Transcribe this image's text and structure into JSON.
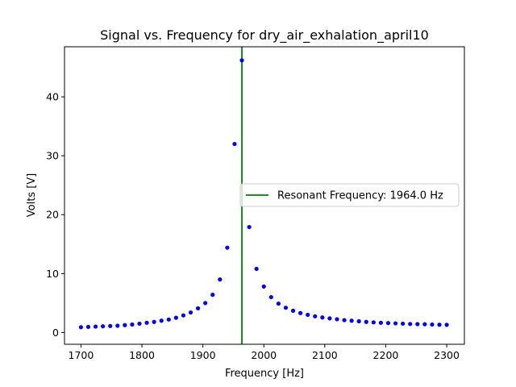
{
  "chart_data": {
    "type": "scatter",
    "title": "Signal vs. Frequency for dry_air_exhalation_april10",
    "xlabel": "Frequency [Hz]",
    "ylabel": "Volts [V]",
    "xlim": [
      1673,
      2329
    ],
    "ylim": [
      -2.0,
      48.5
    ],
    "xticks": [
      1700,
      1800,
      1900,
      2000,
      2100,
      2200,
      2300
    ],
    "yticks": [
      0,
      10,
      20,
      30,
      40
    ],
    "grid": false,
    "legend": {
      "placement": "center-right",
      "entries": [
        "Resonant Frequency: 1964.0 Hz"
      ]
    },
    "series": [
      {
        "marker_color": "#0000ff",
        "x": [
          1700,
          1712,
          1724,
          1736,
          1748,
          1760,
          1772,
          1784,
          1796,
          1808,
          1820,
          1832,
          1844,
          1856,
          1868,
          1880,
          1892,
          1904,
          1916,
          1928,
          1940,
          1952,
          1964,
          1976,
          1988,
          2000,
          2012,
          2024,
          2036,
          2048,
          2060,
          2072,
          2084,
          2096,
          2108,
          2120,
          2132,
          2144,
          2156,
          2168,
          2180,
          2192,
          2204,
          2216,
          2228,
          2240,
          2252,
          2264,
          2276,
          2288,
          2300
        ],
        "y": [
          0.9,
          0.95,
          1.0,
          1.05,
          1.1,
          1.15,
          1.25,
          1.35,
          1.5,
          1.65,
          1.8,
          2.0,
          2.2,
          2.5,
          2.9,
          3.4,
          4.1,
          5.0,
          6.4,
          9.0,
          14.4,
          32.0,
          46.2,
          17.9,
          10.8,
          7.8,
          6.0,
          4.9,
          4.2,
          3.7,
          3.3,
          3.0,
          2.75,
          2.55,
          2.4,
          2.25,
          2.1,
          2.0,
          1.9,
          1.8,
          1.72,
          1.65,
          1.6,
          1.55,
          1.5,
          1.45,
          1.42,
          1.4,
          1.35,
          1.32,
          1.3
        ]
      }
    ],
    "vline": {
      "x": 1964.0,
      "color": "#008000"
    }
  }
}
